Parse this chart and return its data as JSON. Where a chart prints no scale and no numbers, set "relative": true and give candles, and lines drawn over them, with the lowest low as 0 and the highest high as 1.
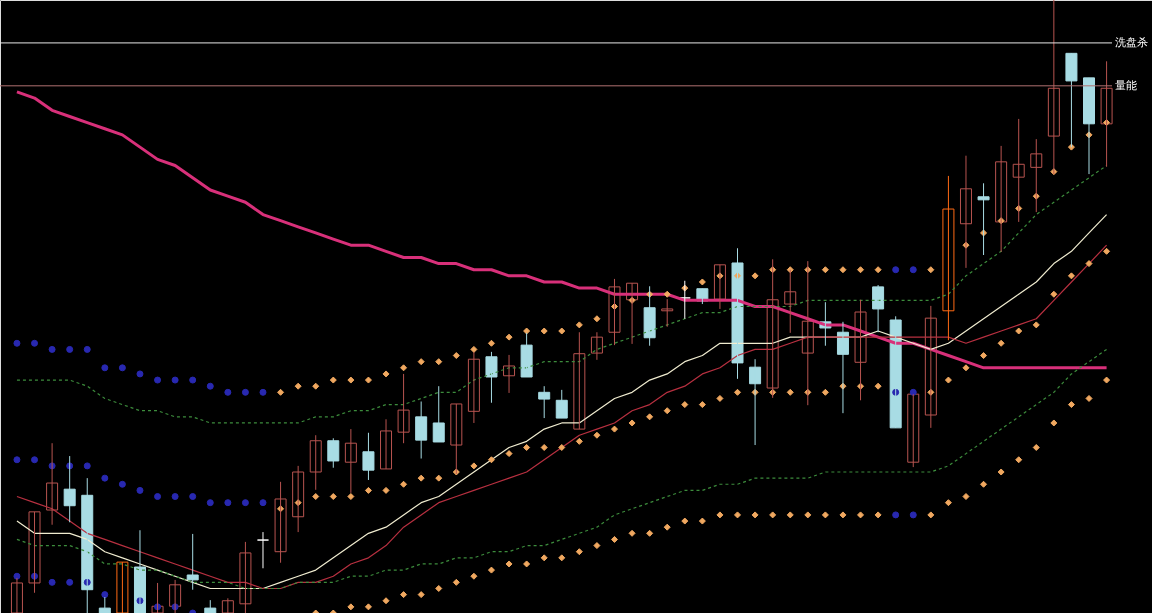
{
  "chart_data": {
    "type": "candlestick",
    "relative": true,
    "categories": [
      null,
      null,
      null,
      null,
      null,
      null,
      null,
      null,
      null,
      null,
      null,
      null,
      null,
      null,
      null,
      null,
      null,
      null,
      null,
      null,
      null,
      null,
      null,
      null,
      null,
      null,
      null,
      null,
      null,
      null,
      null,
      null,
      null,
      null,
      null,
      null,
      null,
      null,
      null,
      null,
      null,
      null,
      null,
      null,
      null,
      null,
      null,
      null,
      null,
      null,
      null,
      null,
      null,
      null,
      null,
      null,
      null,
      null,
      null,
      null,
      null,
      null,
      null
    ],
    "ohlc": [
      [
        0,
        0.057,
        0,
        0.049
      ],
      [
        0.049,
        0.165,
        0.033,
        0.165
      ],
      [
        0.168,
        0.277,
        0.144,
        0.212
      ],
      [
        0.202,
        0.256,
        0.148,
        0.175
      ],
      [
        0.192,
        0.22,
        0,
        0.038
      ],
      [
        0.008,
        0.026,
        0,
        0
      ],
      [
        0,
        0.083,
        0,
        0.083
      ],
      [
        0.075,
        0.135,
        0,
        0
      ],
      [
        0,
        0.049,
        0,
        0.011
      ],
      [
        0.011,
        0.054,
        0,
        0.046
      ],
      [
        0.062,
        0.129,
        0.038,
        0.054
      ],
      [
        0.008,
        0.021,
        0,
        0
      ],
      [
        0,
        0.024,
        0,
        0.02
      ],
      [
        0.015,
        0.116,
        0,
        0.098
      ],
      [
        0.119,
        0.132,
        0.073,
        0.119
      ],
      [
        0.1,
        0.214,
        0.082,
        0.186
      ],
      [
        0.157,
        0.24,
        0.132,
        0.23
      ],
      [
        0.23,
        0.29,
        0.201,
        0.281
      ],
      [
        0.281,
        0.285,
        0.237,
        0.248
      ],
      [
        0.246,
        0.3,
        0.196,
        0.277
      ],
      [
        0.263,
        0.294,
        0.217,
        0.233
      ],
      [
        0.235,
        0.316,
        0.235,
        0.297
      ],
      [
        0.295,
        0.39,
        0.277,
        0.331
      ],
      [
        0.32,
        0.345,
        0.252,
        0.282
      ],
      [
        0.31,
        0.37,
        0.279,
        0.279
      ],
      [
        0.274,
        0.341,
        0.227,
        0.341
      ],
      [
        0.329,
        0.426,
        0.31,
        0.414
      ],
      [
        0.418,
        0.426,
        0.343,
        0.385
      ],
      [
        0.387,
        0.421,
        0.359,
        0.403
      ],
      [
        0.437,
        0.457,
        0.385,
        0.385
      ],
      [
        0.36,
        0.37,
        0.318,
        0.349
      ],
      [
        0.347,
        0.364,
        0.318,
        0.318
      ],
      [
        0.3,
        0.458,
        0.3,
        0.423
      ],
      [
        0.424,
        0.458,
        0.413,
        0.45
      ],
      [
        0.458,
        0.545,
        0.437,
        0.532
      ],
      [
        0.511,
        0.538,
        0.439,
        0.538
      ],
      [
        0.498,
        0.533,
        0.436,
        0.449
      ],
      [
        0.493,
        0.512,
        0.467,
        0.496
      ],
      [
        0.514,
        0.542,
        0.48,
        0.514
      ],
      [
        0.529,
        0.529,
        0.504,
        0.509
      ],
      [
        0.512,
        0.568,
        0.496,
        0.568
      ],
      [
        0.571,
        0.595,
        0.382,
        0.408
      ],
      [
        0.401,
        0.414,
        0.274,
        0.374
      ],
      [
        0.367,
        0.577,
        0.351,
        0.511
      ],
      [
        0.504,
        0.56,
        0.457,
        0.524
      ],
      [
        0.424,
        0.574,
        0.339,
        0.476
      ],
      [
        0.475,
        0.507,
        0.436,
        0.465
      ],
      [
        0.458,
        0.475,
        0.326,
        0.422
      ],
      [
        0.409,
        0.511,
        0.347,
        0.491
      ],
      [
        0.532,
        0.535,
        0.458,
        0.496
      ],
      [
        0.478,
        0.484,
        0.302,
        0.302
      ],
      [
        0.246,
        0.357,
        0.238,
        0.357
      ],
      [
        0.323,
        0.501,
        0.302,
        0.481
      ],
      [
        0.493,
        0.713,
        0.445,
        0.659
      ],
      [
        0.635,
        0.746,
        0.563,
        0.692
      ],
      [
        0.679,
        0.701,
        0.584,
        0.674
      ],
      [
        0.638,
        0.762,
        0.589,
        0.736
      ],
      [
        0.711,
        0.806,
        0.638,
        0.732
      ],
      [
        0.727,
        0.773,
        0.654,
        0.749
      ],
      [
        0.778,
        1,
        0.716,
        0.856
      ],
      [
        0.913,
        0.913,
        0.76,
        0.868
      ],
      [
        0.873,
        0.873,
        0.716,
        0.798
      ],
      [
        0.798,
        0.9,
        0.728,
        0.856
      ]
    ],
    "colors": [
      "#b85450",
      "#b85450",
      "#b85450",
      "#a8dce4",
      "#a8dce4",
      "#a8dce4",
      "#ff6a14",
      "#a8dce4",
      "#b85450",
      "#b85450",
      "#a8dce4",
      "#a8dce4",
      "#b85450",
      "#b85450",
      "#ffffff",
      "#b85450",
      "#b85450",
      "#b85450",
      "#a8dce4",
      "#b85450",
      "#a8dce4",
      "#b85450",
      "#b85450",
      "#a8dce4",
      "#a8dce4",
      "#b85450",
      "#b85450",
      "#a8dce4",
      "#b85450",
      "#a8dce4",
      "#a8dce4",
      "#a8dce4",
      "#b85450",
      "#b85450",
      "#b85450",
      "#b85450",
      "#a8dce4",
      "#b85450",
      "#ffffff",
      "#a8dce4",
      "#b85450",
      "#a8dce4",
      "#a8dce4",
      "#b85450",
      "#b85450",
      "#b85450",
      "#a8dce4",
      "#a8dce4",
      "#b85450",
      "#a8dce4",
      "#a8dce4",
      "#b85450",
      "#b85450",
      "#ff6a14",
      "#b85450",
      "#a8dce4",
      "#b85450",
      "#b85450",
      "#b85450",
      "#b85450",
      "#a8dce4",
      "#a8dce4",
      "#b85450"
    ],
    "series": [
      {
        "type": "line",
        "color": "#d8307a",
        "values": [
          0.85,
          0.84,
          0.82,
          0.81,
          0.8,
          0.79,
          0.78,
          0.76,
          0.74,
          0.73,
          0.71,
          0.69,
          0.68,
          0.67,
          0.65,
          0.64,
          0.63,
          0.62,
          0.61,
          0.6,
          0.6,
          0.59,
          0.58,
          0.58,
          0.57,
          0.57,
          0.56,
          0.56,
          0.55,
          0.55,
          0.54,
          0.54,
          0.53,
          0.53,
          0.52,
          0.52,
          0.52,
          0.52,
          0.51,
          0.51,
          0.51,
          0.51,
          0.5,
          0.5,
          0.49,
          0.48,
          0.47,
          0.47,
          0.46,
          0.45,
          0.44,
          0.44,
          0.43,
          0.42,
          0.41,
          0.4,
          0.4,
          0.4,
          0.4,
          0.4,
          0.4,
          0.4,
          0.4
        ]
      },
      {
        "type": "line",
        "color": "#f0ecd0",
        "values": [
          0.15,
          0.13,
          0.13,
          0.13,
          0.12,
          0.1,
          0.09,
          0.08,
          0.07,
          0.06,
          0.05,
          0.04,
          0.04,
          0.04,
          0.04,
          0.05,
          0.06,
          0.07,
          0.09,
          0.11,
          0.13,
          0.14,
          0.16,
          0.18,
          0.19,
          0.21,
          0.23,
          0.25,
          0.27,
          0.28,
          0.3,
          0.31,
          0.31,
          0.33,
          0.35,
          0.36,
          0.38,
          0.39,
          0.41,
          0.42,
          0.44,
          0.44,
          0.44,
          0.44,
          0.45,
          0.45,
          0.45,
          0.45,
          0.45,
          0.46,
          0.45,
          0.44,
          0.43,
          0.44,
          0.46,
          0.48,
          0.5,
          0.52,
          0.54,
          0.57,
          0.59,
          0.62,
          0.65
        ]
      },
      {
        "type": "line",
        "color": "#b83040",
        "values": [
          0.19,
          0.18,
          0.17,
          0.15,
          0.13,
          0.12,
          0.11,
          0.1,
          0.09,
          0.08,
          0.07,
          0.06,
          0.05,
          0.05,
          0.04,
          0.04,
          0.05,
          0.05,
          0.06,
          0.08,
          0.09,
          0.11,
          0.14,
          0.16,
          0.18,
          0.19,
          0.2,
          0.21,
          0.22,
          0.23,
          0.25,
          0.27,
          0.29,
          0.3,
          0.31,
          0.33,
          0.34,
          0.36,
          0.37,
          0.39,
          0.4,
          0.42,
          0.43,
          0.43,
          0.44,
          0.45,
          0.45,
          0.45,
          0.45,
          0.45,
          0.45,
          0.45,
          0.45,
          0.45,
          0.44,
          0.45,
          0.46,
          0.47,
          0.48,
          0.51,
          0.54,
          0.57,
          0.6
        ]
      },
      {
        "type": "line",
        "color": "#3c8c3c",
        "line_style": "dashed",
        "values": [
          0.38,
          0.38,
          0.38,
          0.38,
          0.37,
          0.35,
          0.34,
          0.33,
          0.33,
          0.32,
          0.32,
          0.31,
          0.31,
          0.31,
          0.31,
          0.31,
          0.31,
          0.32,
          0.32,
          0.33,
          0.33,
          0.34,
          0.34,
          0.35,
          0.36,
          0.36,
          0.38,
          0.39,
          0.4,
          0.4,
          0.41,
          0.41,
          0.41,
          0.43,
          0.44,
          0.45,
          0.46,
          0.47,
          0.48,
          0.49,
          0.49,
          0.5,
          0.5,
          0.5,
          0.5,
          0.51,
          0.51,
          0.51,
          0.51,
          0.51,
          0.51,
          0.51,
          0.51,
          0.52,
          0.55,
          0.57,
          0.59,
          0.62,
          0.65,
          0.67,
          0.69,
          0.71,
          0.73
        ]
      },
      {
        "type": "line",
        "color": "#3c8c3c",
        "line_style": "dashed",
        "values": [
          0.12,
          0.11,
          0.11,
          0.11,
          0.1,
          0.08,
          0.08,
          0.07,
          0.07,
          0.06,
          0.05,
          0.05,
          0.05,
          0.04,
          0.04,
          0.04,
          0.05,
          0.05,
          0.05,
          0.06,
          0.06,
          0.07,
          0.07,
          0.08,
          0.08,
          0.09,
          0.09,
          0.1,
          0.1,
          0.11,
          0.11,
          0.12,
          0.13,
          0.14,
          0.16,
          0.17,
          0.18,
          0.19,
          0.2,
          0.2,
          0.21,
          0.21,
          0.22,
          0.22,
          0.22,
          0.22,
          0.23,
          0.23,
          0.23,
          0.23,
          0.23,
          0.23,
          0.23,
          0.24,
          0.26,
          0.28,
          0.3,
          0.32,
          0.34,
          0.36,
          0.39,
          0.41,
          0.43
        ]
      },
      {
        "type": "scatter",
        "color": "#2828b0",
        "marker": "circle",
        "values": [
          0.44,
          0.44,
          0.43,
          0.43,
          0.43,
          0.4,
          0.4,
          0.39,
          0.38,
          0.38,
          0.38,
          0.37,
          0.36,
          0.36,
          0.36,
          null,
          null,
          null,
          null,
          null,
          null,
          null,
          null,
          null,
          null,
          null,
          null,
          null,
          null,
          null,
          null,
          null,
          null,
          null,
          null,
          null,
          null,
          null,
          null,
          null,
          null,
          null,
          null,
          null,
          null,
          null,
          null,
          null,
          null,
          null,
          0.56,
          0.56,
          null,
          null,
          null,
          null,
          null,
          null,
          null,
          null,
          null,
          null,
          null
        ]
      },
      {
        "type": "scatter",
        "color": "#f0a860",
        "marker": "diamond",
        "values": [
          null,
          null,
          null,
          null,
          null,
          null,
          null,
          null,
          null,
          null,
          null,
          null,
          null,
          null,
          null,
          0.36,
          0.37,
          0.37,
          0.38,
          0.38,
          0.38,
          0.39,
          0.4,
          0.41,
          0.41,
          0.42,
          0.43,
          0.44,
          0.45,
          0.46,
          0.46,
          0.46,
          0.47,
          0.48,
          0.5,
          0.51,
          0.52,
          0.52,
          0.53,
          0.54,
          0.55,
          0.55,
          0.55,
          0.56,
          0.56,
          0.56,
          0.56,
          0.56,
          0.56,
          0.56,
          null,
          null,
          0.56,
          null,
          0.6,
          0.62,
          0.64,
          0.66,
          0.68,
          0.72,
          0.76,
          0.78,
          0.8
        ]
      },
      {
        "type": "scatter",
        "color": "#2828b0",
        "marker": "circle",
        "values": [
          0.25,
          0.25,
          0.24,
          0.24,
          0.24,
          0.22,
          0.21,
          0.2,
          0.19,
          0.19,
          0.19,
          0.18,
          0.18,
          0.18,
          0.18,
          null,
          null,
          null,
          null,
          null,
          null,
          null,
          null,
          null,
          null,
          null,
          null,
          null,
          null,
          null,
          null,
          null,
          null,
          null,
          null,
          null,
          null,
          null,
          null,
          null,
          null,
          null,
          null,
          null,
          null,
          null,
          null,
          null,
          null,
          null,
          0.36,
          0.36,
          null,
          null,
          null,
          null,
          null,
          null,
          null,
          null,
          null,
          null,
          null
        ]
      },
      {
        "type": "scatter",
        "color": "#f0a860",
        "marker": "diamond",
        "values": [
          null,
          null,
          null,
          null,
          null,
          null,
          null,
          null,
          null,
          null,
          null,
          null,
          null,
          null,
          null,
          0.17,
          0.18,
          0.19,
          0.19,
          0.19,
          0.2,
          0.2,
          0.21,
          0.22,
          0.22,
          0.23,
          0.24,
          0.25,
          0.26,
          0.27,
          0.27,
          0.27,
          0.28,
          0.29,
          0.3,
          0.31,
          0.32,
          0.33,
          0.34,
          0.34,
          0.35,
          0.36,
          0.36,
          0.36,
          0.36,
          0.36,
          0.36,
          0.37,
          0.37,
          0.37,
          null,
          null,
          0.36,
          0.38,
          0.4,
          0.42,
          0.44,
          0.46,
          0.47,
          0.52,
          0.55,
          0.57,
          0.59
        ]
      },
      {
        "type": "scatter",
        "color": "#2828b0",
        "marker": "circle",
        "values": [
          0.06,
          0.06,
          0.05,
          0.05,
          0.05,
          0.03,
          null,
          0.02,
          0.01,
          0.01,
          0.0,
          null,
          null,
          null,
          null,
          null,
          null,
          null,
          null,
          null,
          null,
          null,
          null,
          null,
          null,
          null,
          null,
          null,
          null,
          null,
          null,
          null,
          null,
          null,
          null,
          null,
          null,
          null,
          null,
          null,
          null,
          null,
          null,
          null,
          null,
          null,
          null,
          null,
          null,
          null,
          0.16,
          0.16,
          null,
          null,
          null,
          null,
          null,
          null,
          null,
          null,
          null,
          null,
          null
        ]
      },
      {
        "type": "scatter",
        "color": "#f0a860",
        "marker": "diamond",
        "values": [
          null,
          null,
          null,
          null,
          null,
          null,
          null,
          null,
          null,
          null,
          null,
          null,
          null,
          null,
          null,
          null,
          null,
          0.0,
          0.0,
          0.01,
          0.01,
          0.02,
          0.03,
          0.03,
          0.04,
          0.05,
          0.06,
          0.07,
          0.08,
          0.08,
          0.09,
          0.09,
          0.1,
          0.11,
          0.12,
          0.13,
          0.13,
          0.14,
          0.15,
          0.15,
          0.16,
          0.16,
          0.16,
          0.16,
          0.16,
          0.16,
          0.16,
          0.16,
          0.16,
          0.16,
          null,
          null,
          0.16,
          0.18,
          0.19,
          0.21,
          0.23,
          0.25,
          0.27,
          0.31,
          0.34,
          0.35,
          0.38
        ]
      }
    ],
    "ref_lines": [
      {
        "axis": "y",
        "value": 0.93,
        "label": "洗盘杀",
        "color": "#e8e8e8"
      },
      {
        "axis": "y",
        "value": 0.86,
        "label": "量能",
        "color": "#b07070"
      }
    ]
  }
}
